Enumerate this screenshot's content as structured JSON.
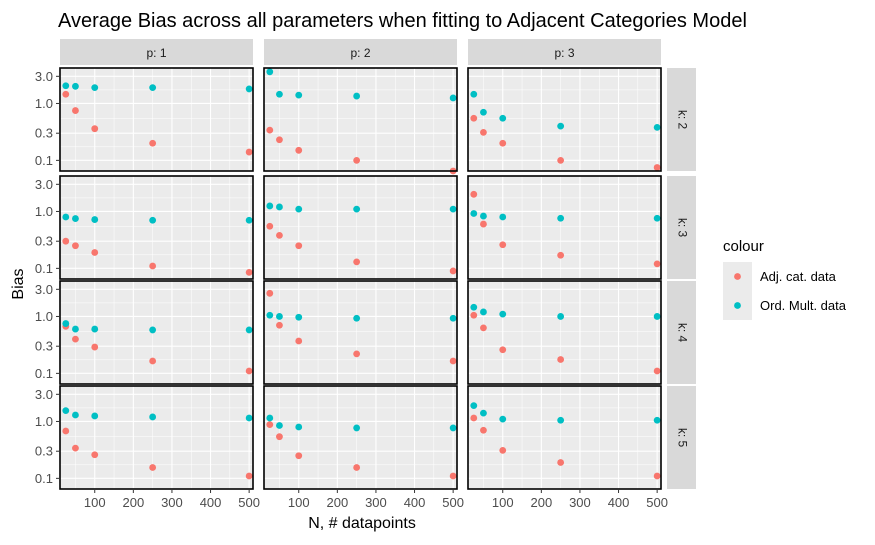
{
  "chart_data": {
    "type": "scatter",
    "title": "Average Bias across all parameters when fitting to Adjacent Categories Model",
    "xlabel": "N, # datapoints",
    "ylabel": "Bias",
    "y_scale": "log10",
    "xlim": [
      10,
      510
    ],
    "ylim": [
      0.065,
      4.2
    ],
    "x_ticks": [
      100,
      200,
      300,
      400,
      500
    ],
    "x_tick_labels": [
      "100",
      "200",
      "300",
      "400",
      "500"
    ],
    "y_ticks": [
      0.1,
      0.3,
      1.0,
      3.0
    ],
    "y_tick_labels": [
      "0.1",
      "0.3",
      "1.0",
      "3.0"
    ],
    "grid": true,
    "facet_cols": [
      "p: 1",
      "p: 2",
      "p: 3"
    ],
    "facet_rows": [
      "k: 2",
      "k: 3",
      "k: 4",
      "k: 5"
    ],
    "legend": {
      "title": "colour",
      "position": "right",
      "entries": [
        {
          "label": "Adj. cat. data",
          "color": "#F8766D"
        },
        {
          "label": "Ord. Mult. data",
          "color": "#00BFC4"
        }
      ]
    },
    "x": [
      25,
      50,
      100,
      250,
      500
    ],
    "panels": [
      {
        "row": "k: 2",
        "col": "p: 1",
        "adj": [
          1.45,
          0.75,
          0.36,
          0.2,
          0.14
        ],
        "ord": [
          2.05,
          2.0,
          1.9,
          1.9,
          1.8
        ]
      },
      {
        "row": "k: 2",
        "col": "p: 2",
        "adj": [
          0.34,
          0.23,
          0.15,
          0.1,
          0.065
        ],
        "ord": [
          3.6,
          1.45,
          1.4,
          1.35,
          1.25
        ]
      },
      {
        "row": "k: 2",
        "col": "p: 3",
        "adj": [
          0.55,
          0.31,
          0.2,
          0.1,
          0.075
        ],
        "ord": [
          1.45,
          0.7,
          0.55,
          0.4,
          0.38
        ]
      },
      {
        "row": "k: 3",
        "col": "p: 1",
        "adj": [
          0.3,
          0.25,
          0.19,
          0.11,
          0.085
        ],
        "ord": [
          0.8,
          0.75,
          0.72,
          0.7,
          0.7
        ]
      },
      {
        "row": "k: 3",
        "col": "p: 2",
        "adj": [
          0.55,
          0.38,
          0.25,
          0.13,
          0.09
        ],
        "ord": [
          1.25,
          1.2,
          1.1,
          1.1,
          1.1
        ]
      },
      {
        "row": "k: 3",
        "col": "p: 3",
        "adj": [
          2.0,
          0.6,
          0.26,
          0.17,
          0.12
        ],
        "ord": [
          0.92,
          0.83,
          0.8,
          0.76,
          0.76
        ]
      },
      {
        "row": "k: 4",
        "col": "p: 1",
        "adj": [
          0.67,
          0.4,
          0.29,
          0.165,
          0.11
        ],
        "ord": [
          0.75,
          0.6,
          0.6,
          0.58,
          0.58
        ]
      },
      {
        "row": "k: 4",
        "col": "p: 2",
        "adj": [
          2.55,
          0.7,
          0.37,
          0.22,
          0.165
        ],
        "ord": [
          1.05,
          1.0,
          0.97,
          0.93,
          0.93
        ]
      },
      {
        "row": "k: 4",
        "col": "p: 3",
        "adj": [
          1.05,
          0.63,
          0.26,
          0.175,
          0.11
        ],
        "ord": [
          1.45,
          1.2,
          1.1,
          1.0,
          1.0
        ]
      },
      {
        "row": "k: 5",
        "col": "p: 1",
        "adj": [
          0.68,
          0.34,
          0.26,
          0.155,
          0.11
        ],
        "ord": [
          1.55,
          1.3,
          1.25,
          1.2,
          1.15
        ]
      },
      {
        "row": "k: 5",
        "col": "p: 2",
        "adj": [
          0.88,
          0.54,
          0.25,
          0.155,
          0.11
        ],
        "ord": [
          1.15,
          0.85,
          0.8,
          0.77,
          0.77
        ]
      },
      {
        "row": "k: 5",
        "col": "p: 3",
        "adj": [
          1.15,
          0.7,
          0.31,
          0.19,
          0.11
        ],
        "ord": [
          1.9,
          1.4,
          1.1,
          1.05,
          1.05
        ]
      }
    ]
  }
}
